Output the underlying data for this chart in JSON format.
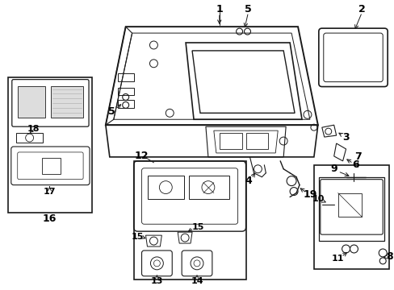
{
  "bg_color": "#ffffff",
  "line_color": "#1a1a1a",
  "figsize": [
    4.89,
    3.6
  ],
  "dpi": 100,
  "gray": "#888888"
}
